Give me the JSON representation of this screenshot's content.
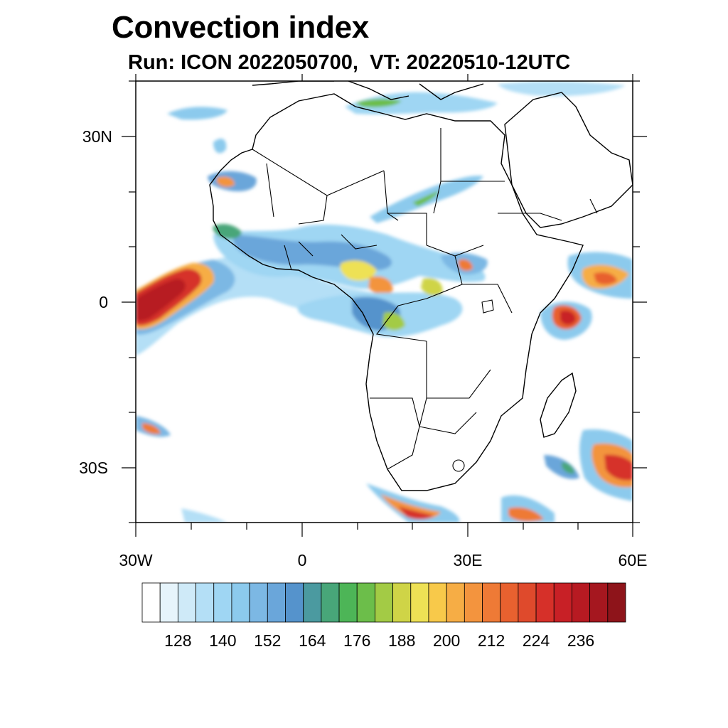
{
  "title": "Convection index",
  "subtitle": "Run: ICON 2022050700,  VT: 20220510-12UTC",
  "lat_labels": [
    "30N",
    "0",
    "30S"
  ],
  "lon_labels": [
    "30W",
    "0",
    "30E",
    "60E"
  ],
  "colorbar": {
    "labels": [
      "128",
      "140",
      "152",
      "164",
      "176",
      "188",
      "200",
      "212",
      "224",
      "236"
    ],
    "colors": [
      "#ffffff",
      "#e6f4fb",
      "#cfeaf8",
      "#b4dff6",
      "#9fd6f3",
      "#8ccaed",
      "#7cb8e4",
      "#6aa6da",
      "#5593cc",
      "#4b9aa0",
      "#48a679",
      "#4db557",
      "#6cbe4a",
      "#a3cb45",
      "#cfd447",
      "#eee155",
      "#f8c94a",
      "#f6ad45",
      "#f3943e",
      "#ee7a36",
      "#e8612f",
      "#df4a2c",
      "#d63029",
      "#c82026",
      "#b71a22",
      "#a5171f",
      "#8e141a"
    ]
  },
  "map": {
    "projection": "cylindrical",
    "lon_range": [
      -30,
      60
    ],
    "lat_range": [
      -40,
      40
    ],
    "field": "Convection index",
    "regions": "Africa, Arabian Peninsula, southern Europe, Atlantic and Indian Ocean"
  }
}
